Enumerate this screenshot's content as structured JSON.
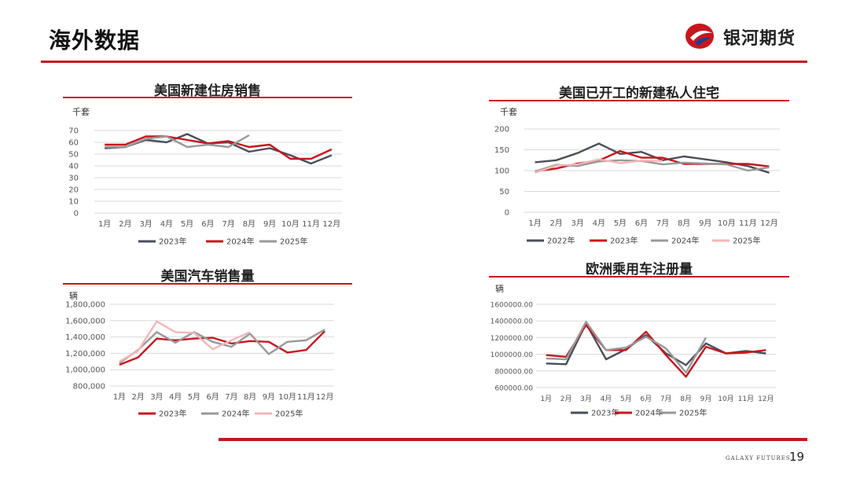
{
  "page": {
    "title": "海外数据",
    "brand": "银河期货",
    "footer": "GALAXY FUTURES",
    "page_number": "19"
  },
  "colors": {
    "accent": "#c8161d",
    "dark_gray": "#4a4f5a",
    "mid_gray": "#999999",
    "pink": "#f4b6b8",
    "red": "#c8161d"
  },
  "icons": {
    "logo": "galaxy-logo-icon"
  },
  "charts": {
    "us_new_home_sales": {
      "title": "美国新建住房销售",
      "unit": "千套",
      "yticks": [
        "70",
        "60",
        "50",
        "40",
        "30",
        "20",
        "10",
        "0"
      ]
    },
    "us_housing_starts": {
      "title": "美国已开工的新建私人住宅",
      "unit": "千套",
      "yticks": [
        "200",
        "150",
        "100",
        "50",
        "0"
      ]
    },
    "us_auto_sales": {
      "title": "美国汽车销售量",
      "unit": "辆",
      "yticks": [
        "1,800,000",
        "1,600,000",
        "1,400,000",
        "1,200,000",
        "1,000,000",
        "800,000"
      ]
    },
    "eu_car_registrations": {
      "title": "欧洲乘用车注册量",
      "unit": "辆",
      "yticks": [
        "1600000.00",
        "1400000.00",
        "1200000.00",
        "1000000.00",
        "800000.00",
        "600000.00"
      ]
    }
  },
  "chart_data": [
    {
      "type": "line",
      "title": "美国新建住房销售",
      "ylabel": "千套",
      "ylim": [
        0,
        70
      ],
      "categories": [
        "1月",
        "2月",
        "3月",
        "4月",
        "5月",
        "6月",
        "7月",
        "8月",
        "9月",
        "10月",
        "11月",
        "12月"
      ],
      "series": [
        {
          "name": "2023年",
          "color": "#4a4f5a",
          "values": [
            55,
            56,
            62,
            60,
            67,
            59,
            60,
            52,
            55,
            49,
            42,
            49
          ]
        },
        {
          "name": "2024年",
          "color": "#c8161d",
          "values": [
            58,
            58,
            65,
            65,
            62,
            59,
            61,
            56,
            58,
            46,
            46,
            54
          ]
        },
        {
          "name": "2025年",
          "color": "#999999",
          "values": [
            56,
            56,
            63,
            65,
            56,
            58,
            56,
            66,
            null,
            null,
            null,
            null
          ]
        }
      ]
    },
    {
      "type": "line",
      "title": "美国已开工的新建私人住宅",
      "ylabel": "千套",
      "ylim": [
        0,
        200
      ],
      "categories": [
        "1月",
        "2月",
        "3月",
        "4月",
        "5月",
        "6月",
        "7月",
        "8月",
        "9月",
        "10月",
        "11月",
        "12月"
      ],
      "series": [
        {
          "name": "2022年",
          "color": "#4a4f5a",
          "values": [
            120,
            125,
            142,
            165,
            140,
            145,
            125,
            134,
            127,
            120,
            111,
            95
          ]
        },
        {
          "name": "2023年",
          "color": "#c8161d",
          "values": [
            98,
            105,
            117,
            124,
            147,
            131,
            131,
            116,
            116,
            116,
            116,
            110
          ]
        },
        {
          "name": "2024年",
          "color": "#999999",
          "values": [
            98,
            114,
            111,
            122,
            125,
            123,
            115,
            119,
            117,
            115,
            100,
            108
          ]
        },
        {
          "name": "2025年",
          "color": "#f4b6b8",
          "values": [
            95,
            112,
            115,
            127,
            118,
            124,
            123,
            null,
            null,
            null,
            null,
            null
          ]
        }
      ]
    },
    {
      "type": "line",
      "title": "美国汽车销售量",
      "ylabel": "辆",
      "ylim": [
        800000,
        1800000
      ],
      "categories": [
        "1月",
        "2月",
        "3月",
        "4月",
        "5月",
        "6月",
        "7月",
        "8月",
        "9月",
        "10月",
        "11月",
        "12月"
      ],
      "series": [
        {
          "name": "2023年",
          "color": "#c8161d",
          "values": [
            1060000,
            1150000,
            1380000,
            1360000,
            1380000,
            1390000,
            1320000,
            1350000,
            1340000,
            1210000,
            1240000,
            1470000
          ]
        },
        {
          "name": "2024年",
          "color": "#999999",
          "values": [
            1080000,
            1240000,
            1460000,
            1330000,
            1460000,
            1340000,
            1280000,
            1440000,
            1190000,
            1340000,
            1360000,
            1490000
          ]
        },
        {
          "name": "2025年",
          "color": "#f4b6b8",
          "values": [
            1100000,
            1230000,
            1590000,
            1460000,
            1450000,
            1250000,
            1360000,
            1460000,
            null,
            null,
            null,
            null
          ]
        }
      ]
    },
    {
      "type": "line",
      "title": "欧洲乘用车注册量",
      "ylabel": "辆",
      "ylim": [
        600000,
        1600000
      ],
      "categories": [
        "1月",
        "2月",
        "3月",
        "4月",
        "5月",
        "6月",
        "7月",
        "8月",
        "9月",
        "10月",
        "11月",
        "12月"
      ],
      "series": [
        {
          "name": "2023年",
          "color": "#4a4f5a",
          "values": [
            890000,
            880000,
            1370000,
            940000,
            1060000,
            1230000,
            1010000,
            870000,
            1130000,
            1010000,
            1040000,
            1010000
          ]
        },
        {
          "name": "2024年",
          "color": "#c8161d",
          "values": [
            990000,
            970000,
            1350000,
            1050000,
            1050000,
            1270000,
            990000,
            730000,
            1090000,
            1010000,
            1020000,
            1050000
          ]
        },
        {
          "name": "2025年",
          "color": "#999999",
          "values": [
            950000,
            940000,
            1390000,
            1050000,
            1080000,
            1210000,
            1070000,
            780000,
            1200000,
            null,
            null,
            null
          ]
        }
      ]
    }
  ]
}
